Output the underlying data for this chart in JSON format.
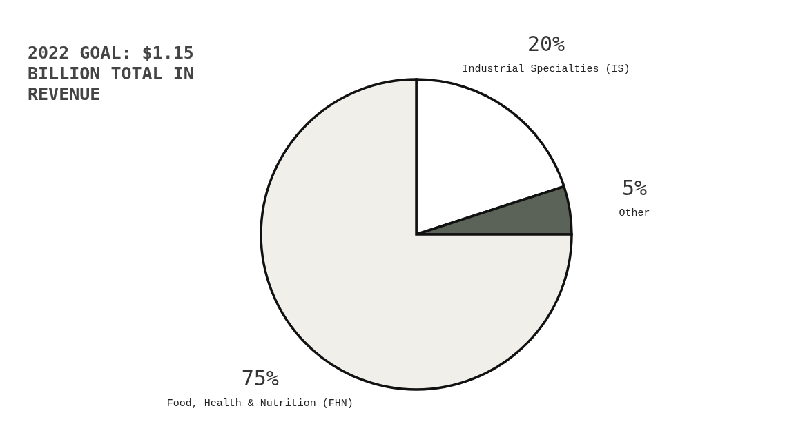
{
  "chart_data": {
    "type": "pie",
    "title": "2022 GOAL: $1.15 BILLION TOTAL IN REVENUE",
    "categories": [
      "Industrial Specialties (IS)",
      "Other",
      "Food, Health & Nutrition (FHN)"
    ],
    "values": [
      20,
      5,
      75
    ],
    "colors": [
      "#ffffff",
      "#5b6358",
      "#f0efe9"
    ],
    "value_labels": [
      "20%",
      "5%",
      "75%"
    ]
  }
}
